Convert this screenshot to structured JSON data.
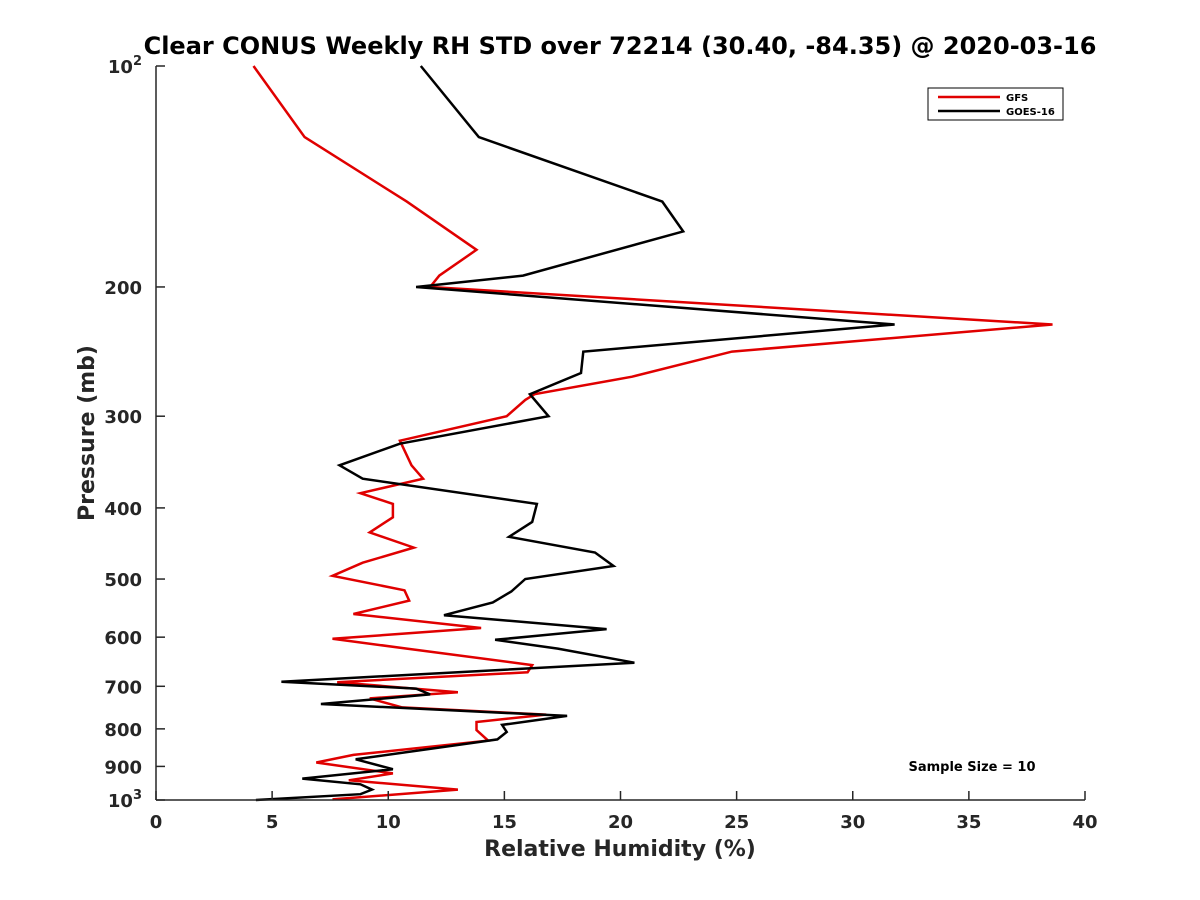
{
  "chart_data": {
    "type": "line",
    "title": "Clear CONUS Weekly RH STD over 72214 (30.40, -84.35) @ 2020-03-16",
    "xlabel": "Relative Humidity (%)",
    "ylabel": "Pressure (mb)",
    "xlim": [
      0,
      40
    ],
    "ylim": [
      100,
      1000
    ],
    "yscale": "log",
    "y_reversed": true,
    "grid": false,
    "xticks": [
      0,
      5,
      10,
      15,
      20,
      25,
      30,
      35,
      40
    ],
    "xtick_labels": [
      "0",
      "5",
      "10",
      "15",
      "20",
      "25",
      "30",
      "35",
      "40"
    ],
    "yticks": [
      {
        "value": 100,
        "base": "10",
        "exp": "2"
      },
      {
        "value": 200,
        "label": "200"
      },
      {
        "value": 300,
        "label": "300"
      },
      {
        "value": 400,
        "label": "400"
      },
      {
        "value": 500,
        "label": "500"
      },
      {
        "value": 600,
        "label": "600"
      },
      {
        "value": 700,
        "label": "700"
      },
      {
        "value": 800,
        "label": "800"
      },
      {
        "value": 900,
        "label": "900"
      },
      {
        "value": 1000,
        "base": "10",
        "exp": "3"
      }
    ],
    "legend": {
      "position": "top-right"
    },
    "series": [
      {
        "name": "GFS",
        "color": "#e00000",
        "points": [
          [
            4.2,
            100
          ],
          [
            6.4,
            125
          ],
          [
            10.8,
            153
          ],
          [
            13.8,
            178
          ],
          [
            12.2,
            193
          ],
          [
            11.8,
            200
          ],
          [
            38.6,
            225
          ],
          [
            24.8,
            245
          ],
          [
            20.5,
            265
          ],
          [
            16.3,
            280
          ],
          [
            15.9,
            285
          ],
          [
            15.1,
            300
          ],
          [
            10.5,
            324
          ],
          [
            11.0,
            350
          ],
          [
            11.5,
            365
          ],
          [
            8.8,
            382
          ],
          [
            10.2,
            395
          ],
          [
            10.2,
            412
          ],
          [
            9.2,
            432
          ],
          [
            11.1,
            453
          ],
          [
            8.9,
            475
          ],
          [
            7.6,
            495
          ],
          [
            10.7,
            518
          ],
          [
            10.9,
            535
          ],
          [
            8.5,
            558
          ],
          [
            14.0,
            583
          ],
          [
            7.6,
            603
          ],
          [
            10.8,
            622
          ],
          [
            16.2,
            655
          ],
          [
            16.0,
            670
          ],
          [
            7.8,
            691
          ],
          [
            13.0,
            713
          ],
          [
            9.2,
            727
          ],
          [
            10.6,
            748
          ],
          [
            16.8,
            765
          ],
          [
            13.8,
            783
          ],
          [
            13.8,
            803
          ],
          [
            14.3,
            830
          ],
          [
            8.5,
            868
          ],
          [
            6.9,
            889
          ],
          [
            10.2,
            920
          ],
          [
            8.3,
            940
          ],
          [
            13.0,
            968
          ],
          [
            7.6,
            998
          ]
        ]
      },
      {
        "name": "GOES-16",
        "color": "#000000",
        "points": [
          [
            11.4,
            100
          ],
          [
            13.9,
            125
          ],
          [
            21.8,
            153
          ],
          [
            22.7,
            168
          ],
          [
            15.8,
            193
          ],
          [
            11.2,
            200
          ],
          [
            31.8,
            225
          ],
          [
            18.4,
            245
          ],
          [
            18.3,
            262
          ],
          [
            16.1,
            280
          ],
          [
            16.9,
            300
          ],
          [
            10.5,
            327
          ],
          [
            7.9,
            350
          ],
          [
            8.9,
            365
          ],
          [
            16.4,
            395
          ],
          [
            16.2,
            418
          ],
          [
            15.2,
            438
          ],
          [
            18.9,
            460
          ],
          [
            19.7,
            480
          ],
          [
            15.9,
            500
          ],
          [
            15.3,
            520
          ],
          [
            14.5,
            538
          ],
          [
            12.4,
            560
          ],
          [
            19.4,
            585
          ],
          [
            14.6,
            605
          ],
          [
            17.3,
            622
          ],
          [
            20.6,
            650
          ],
          [
            5.4,
            690
          ],
          [
            11.2,
            705
          ],
          [
            11.8,
            718
          ],
          [
            7.1,
            740
          ],
          [
            17.7,
            768
          ],
          [
            14.9,
            790
          ],
          [
            15.1,
            808
          ],
          [
            14.7,
            827
          ],
          [
            8.6,
            880
          ],
          [
            10.2,
            908
          ],
          [
            6.3,
            935
          ],
          [
            8.8,
            952
          ],
          [
            9.3,
            968
          ],
          [
            8.8,
            982
          ],
          [
            4.3,
            1000
          ]
        ]
      }
    ],
    "annotations": [
      "Sample Size = 10"
    ]
  }
}
